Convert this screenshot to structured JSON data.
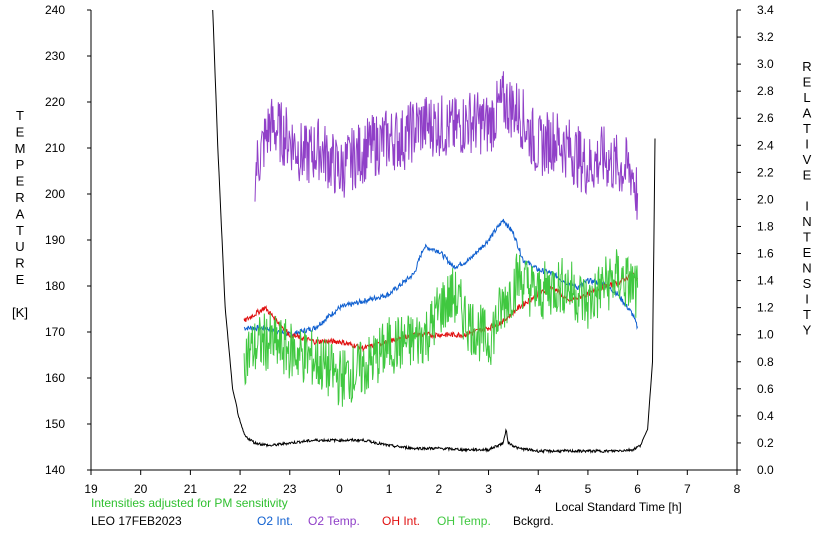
{
  "chart_data": {
    "type": "line",
    "xlabel": "Local Standard Time [h]",
    "left_axis_label_letters": [
      "T",
      "E",
      "M",
      "P",
      "E",
      "R",
      "A",
      "T",
      "U",
      "R",
      "E",
      "",
      "[K]"
    ],
    "right_axis_label_letters": [
      "R",
      "E",
      "L",
      "A",
      "T",
      "I",
      "V",
      "E",
      "",
      "I",
      "N",
      "T",
      "E",
      "N",
      "S",
      "I",
      "T",
      "Y"
    ],
    "x_ticks": [
      "19",
      "20",
      "21",
      "22",
      "23",
      "0",
      "1",
      "2",
      "3",
      "4",
      "5",
      "6",
      "7",
      "8"
    ],
    "y_left_ticks": [
      "140",
      "150",
      "160",
      "170",
      "180",
      "190",
      "200",
      "210",
      "220",
      "230",
      "240"
    ],
    "y_right_ticks": [
      "0.0",
      "0.2",
      "0.4",
      "0.6",
      "0.8",
      "1.0",
      "1.2",
      "1.4",
      "1.6",
      "1.8",
      "2.0",
      "2.2",
      "2.4",
      "2.6",
      "2.8",
      "3.0",
      "3.2",
      "3.4"
    ],
    "xlim": [
      19,
      32
    ],
    "ylim_left": [
      140,
      240
    ],
    "ylim_right": [
      0,
      3.4
    ],
    "grid": false,
    "note_line": "Intensities adjusted for PM sensitivity",
    "station_date": "LEO 17FEB2023",
    "series": [
      {
        "name": "O2 Int.",
        "color": "#1060d0",
        "axis": "right",
        "x": [
          22.08,
          22.5,
          23.0,
          23.5,
          24.0,
          24.5,
          25.0,
          25.5,
          25.7,
          26.0,
          26.3,
          26.6,
          27.0,
          27.3,
          27.5,
          27.7,
          28.0,
          28.3,
          28.5,
          28.8,
          29.0,
          29.3,
          29.6,
          29.9,
          30.0
        ],
        "y": [
          1.05,
          1.05,
          1.0,
          1.05,
          1.2,
          1.25,
          1.3,
          1.45,
          1.65,
          1.62,
          1.5,
          1.55,
          1.7,
          1.85,
          1.75,
          1.55,
          1.48,
          1.45,
          1.4,
          1.35,
          1.4,
          1.38,
          1.3,
          1.15,
          1.05
        ]
      },
      {
        "name": "O2 Temp.",
        "color": "#9040c8",
        "axis": "left",
        "x": [
          22.3,
          22.6,
          23.0,
          23.3,
          23.6,
          24.0,
          24.3,
          24.6,
          25.0,
          25.3,
          25.6,
          26.0,
          26.3,
          26.6,
          27.0,
          27.3,
          27.6,
          28.0,
          28.3,
          28.6,
          29.0,
          29.3,
          29.6,
          29.9,
          30.0
        ],
        "y": [
          205,
          215,
          212,
          208,
          210,
          205,
          208,
          210,
          212,
          212,
          215,
          215,
          214,
          216,
          215,
          220,
          218,
          210,
          212,
          210,
          206,
          208,
          206,
          205,
          199
        ]
      },
      {
        "name": "OH Int.",
        "color": "#e01010",
        "axis": "right",
        "x": [
          22.08,
          22.5,
          23.0,
          23.5,
          24.0,
          24.5,
          25.0,
          25.5,
          26.0,
          26.5,
          27.0,
          27.3,
          27.6,
          28.0,
          28.3,
          28.6,
          29.0,
          29.3,
          29.6,
          29.9,
          30.0
        ],
        "y": [
          1.1,
          1.2,
          1.0,
          0.95,
          0.95,
          0.9,
          0.95,
          1.0,
          1.0,
          1.0,
          1.05,
          1.1,
          1.2,
          1.3,
          1.35,
          1.25,
          1.3,
          1.35,
          1.38,
          1.45,
          1.4
        ]
      },
      {
        "name": "OH Temp.",
        "color": "#40c840",
        "axis": "left",
        "x": [
          22.08,
          22.5,
          23.0,
          23.5,
          24.0,
          24.5,
          25.0,
          25.5,
          25.8,
          26.0,
          26.3,
          26.6,
          27.0,
          27.3,
          27.6,
          28.0,
          28.3,
          28.6,
          29.0,
          29.3,
          29.6,
          29.9,
          30.0
        ],
        "y": [
          165,
          168,
          166,
          164,
          160,
          162,
          167,
          168,
          170,
          175,
          178,
          172,
          168,
          176,
          182,
          178,
          180,
          180,
          176,
          180,
          182,
          180,
          178
        ]
      },
      {
        "name": "Bckgrd.",
        "color": "#000000",
        "axis": "right",
        "x": [
          21.45,
          21.55,
          21.7,
          21.85,
          22.0,
          22.1,
          22.3,
          22.6,
          23.0,
          23.5,
          24.0,
          24.5,
          25.0,
          25.5,
          26.0,
          26.5,
          27.0,
          27.3,
          27.35,
          27.4,
          27.6,
          28.0,
          28.5,
          29.0,
          29.5,
          29.9,
          30.05,
          30.2,
          30.3,
          30.35
        ],
        "y": [
          3.4,
          2.4,
          1.2,
          0.6,
          0.35,
          0.25,
          0.2,
          0.18,
          0.2,
          0.22,
          0.22,
          0.22,
          0.18,
          0.16,
          0.16,
          0.15,
          0.15,
          0.2,
          0.3,
          0.2,
          0.16,
          0.14,
          0.14,
          0.14,
          0.14,
          0.15,
          0.18,
          0.3,
          0.8,
          2.45
        ]
      }
    ]
  }
}
